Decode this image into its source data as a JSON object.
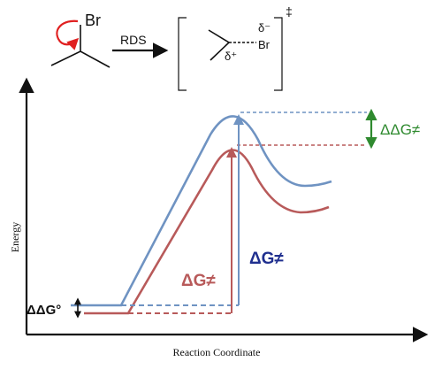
{
  "reaction": {
    "reactant_atom": "Br",
    "arrow_label": "RDS",
    "ts_delta_minus": "δ⁻",
    "ts_delta_plus": "δ⁺",
    "ts_atom": "Br",
    "ts_symbol": "‡"
  },
  "axes": {
    "ylabel": "Energy",
    "xlabel": "Reaction Coordinate"
  },
  "labels": {
    "ddg_ts": "ΔΔG≠",
    "dg_red": "ΔG≠",
    "dg_blue": "ΔG≠",
    "ddg_ground": "ΔΔG°"
  },
  "colors": {
    "blue_curve": "#6f93c2",
    "red_curve": "#b85a5a",
    "green": "#2f8a2f",
    "dark_blue": "#1f2f8f",
    "curly_arrow": "#e02020",
    "ink": "#111111"
  }
}
